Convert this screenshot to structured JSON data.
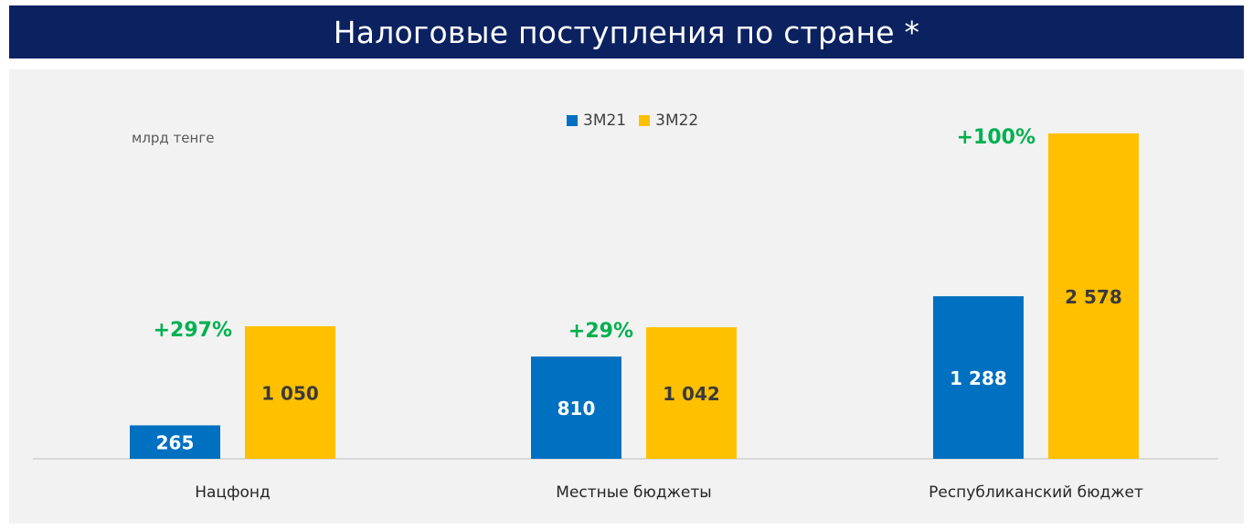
{
  "title": "Налоговые поступления по стране *",
  "chart_data": {
    "type": "bar",
    "unit_label": "млрд тенге",
    "categories": [
      "Нацфонд",
      "Местные бюджеты",
      "Республиканский бюджет"
    ],
    "series": [
      {
        "name": "3М21",
        "color": "#0070c0",
        "values": [
          265,
          810,
          1288
        ],
        "labels": [
          "265",
          "810",
          "1 288"
        ]
      },
      {
        "name": "3М22",
        "color": "#ffc000",
        "values": [
          1050,
          1042,
          2578
        ],
        "labels": [
          "1 050",
          "1 042",
          "2 578"
        ]
      }
    ],
    "growth_labels": [
      "+297%",
      "+29%",
      "+100%"
    ],
    "growth_color": "#00b050",
    "ylim": [
      0,
      2578
    ],
    "grid": false,
    "legend_position": "top-center"
  }
}
